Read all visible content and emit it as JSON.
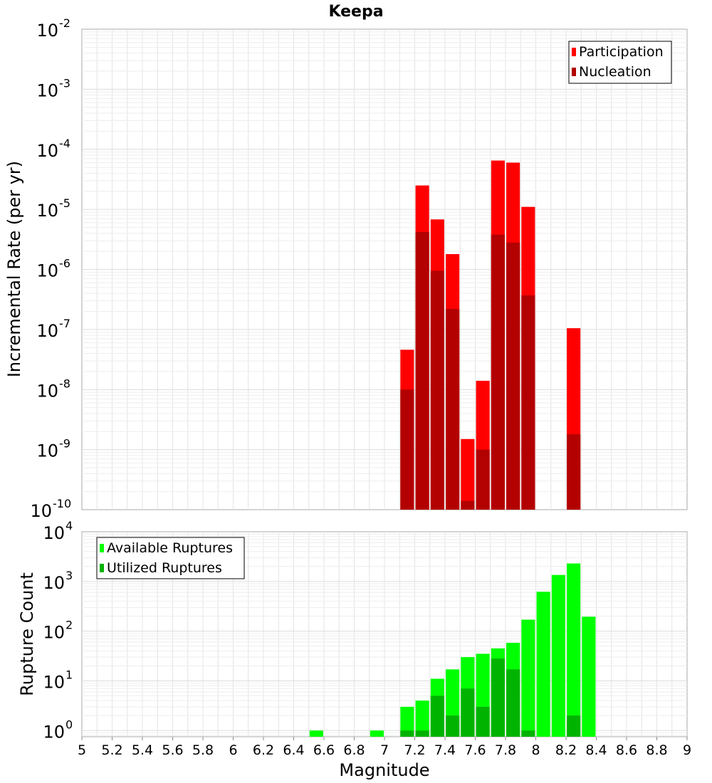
{
  "chart_data": [
    {
      "type": "bar",
      "title": "Keepa",
      "xlabel": "",
      "ylabel": "Incremental Rate (per yr)",
      "log_scale_y": true,
      "ylim": [
        1e-10,
        0.01
      ],
      "xlim": [
        5,
        9
      ],
      "grid": true,
      "legend_position": "top-right",
      "series": [
        {
          "name": "Participation",
          "color": "#ff0000",
          "x": [
            7.15,
            7.25,
            7.35,
            7.45,
            7.55,
            7.65,
            7.75,
            7.85,
            7.95,
            8.25
          ],
          "values": [
            4.6e-08,
            2.5e-05,
            6.8e-06,
            1.8e-06,
            1.5e-09,
            1.4e-08,
            6.5e-05,
            6e-05,
            1.1e-05,
            1.05e-07
          ]
        },
        {
          "name": "Nucleation",
          "color": "#b30000",
          "x": [
            7.15,
            7.25,
            7.35,
            7.45,
            7.55,
            7.65,
            7.75,
            7.85,
            7.95,
            8.25
          ],
          "values": [
            1e-08,
            4.2e-06,
            9.5e-07,
            2.2e-07,
            1.4e-10,
            1e-09,
            3.8e-06,
            2.8e-06,
            3.7e-07,
            1.8e-09
          ]
        }
      ],
      "y_ticks": [
        {
          "mantissa": "10",
          "exponent": "-2"
        },
        {
          "mantissa": "10",
          "exponent": "-3"
        },
        {
          "mantissa": "10",
          "exponent": "-4"
        },
        {
          "mantissa": "10",
          "exponent": "-5"
        },
        {
          "mantissa": "10",
          "exponent": "-6"
        },
        {
          "mantissa": "10",
          "exponent": "-7"
        },
        {
          "mantissa": "10",
          "exponent": "-8"
        },
        {
          "mantissa": "10",
          "exponent": "-9"
        },
        {
          "mantissa": "10",
          "exponent": "-10"
        }
      ]
    },
    {
      "type": "bar",
      "title": "",
      "xlabel": "Magnitude",
      "ylabel": "Rupture Count",
      "log_scale_y": true,
      "ylim": [
        0.75,
        10000
      ],
      "xlim": [
        5,
        9
      ],
      "grid": true,
      "legend_position": "top-left",
      "series": [
        {
          "name": "Available Ruptures",
          "color": "#00ff00",
          "x": [
            6.55,
            6.95,
            7.15,
            7.25,
            7.35,
            7.45,
            7.55,
            7.65,
            7.75,
            7.85,
            7.95,
            8.05,
            8.15,
            8.25,
            8.35
          ],
          "values": [
            1,
            1,
            3,
            4,
            11,
            17,
            30,
            35,
            45,
            58,
            170,
            620,
            1350,
            2300,
            195
          ]
        },
        {
          "name": "Utilized Ruptures",
          "color": "#00b300",
          "x": [
            7.15,
            7.25,
            7.35,
            7.45,
            7.55,
            7.65,
            7.75,
            7.85,
            7.95,
            8.25
          ],
          "values": [
            1,
            1,
            5,
            2,
            7,
            3,
            28,
            17,
            1,
            2
          ]
        }
      ],
      "y_ticks": [
        {
          "mantissa": "10",
          "exponent": "4"
        },
        {
          "mantissa": "10",
          "exponent": "3"
        },
        {
          "mantissa": "10",
          "exponent": "2"
        },
        {
          "mantissa": "10",
          "exponent": "1"
        },
        {
          "mantissa": "10",
          "exponent": "0"
        }
      ],
      "x_ticks": [
        "5",
        "5.2",
        "5.4",
        "5.6",
        "5.8",
        "6",
        "6.2",
        "6.4",
        "6.6",
        "6.8",
        "7",
        "7.2",
        "7.4",
        "7.6",
        "7.8",
        "8",
        "8.2",
        "8.4",
        "8.6",
        "8.8",
        "9"
      ]
    }
  ]
}
